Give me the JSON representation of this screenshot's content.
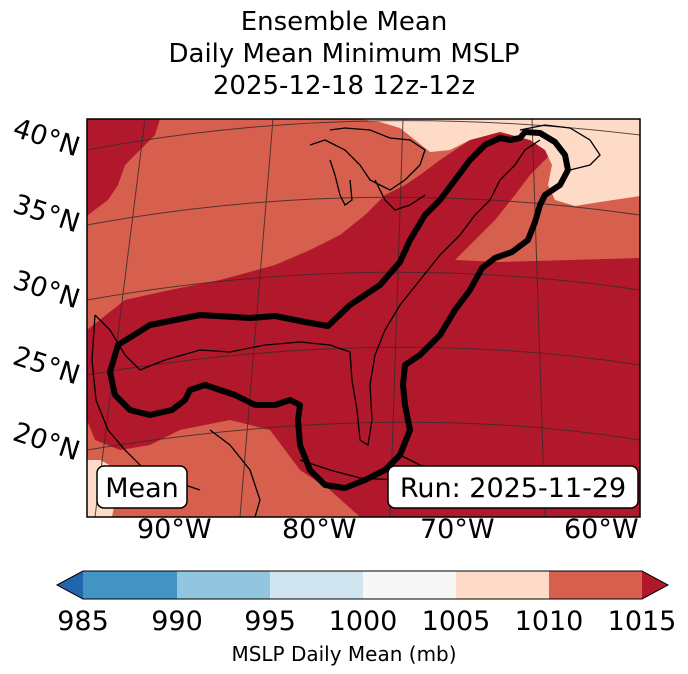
{
  "title": {
    "line1": "Ensemble Mean",
    "line2": "Daily Mean Minimum MSLP",
    "line3": "2025-12-18 12z-12z"
  },
  "map": {
    "lat_labels": [
      "40°N",
      "35°N",
      "30°N",
      "25°N",
      "20°N"
    ],
    "lon_labels": [
      "90°W",
      "80°W",
      "70°W",
      "60°W"
    ],
    "left_box": "Mean",
    "right_box": "Run: 2025-11-29",
    "colors": {
      "low_1010_1015": "#b2182b",
      "mid_1005_1010": "#d6604d",
      "high_1000_1005": "#fddbc7",
      "contour": "#000000",
      "coast": "#000000",
      "grid": "#3b2a2a"
    }
  },
  "colorbar": {
    "ticks": [
      "985",
      "990",
      "995",
      "1000",
      "1005",
      "1010",
      "1015"
    ],
    "label": "MSLP Daily Mean (mb)",
    "colors": [
      "#2166ac",
      "#4393c3",
      "#92c5de",
      "#d1e5f0",
      "#f7f7f7",
      "#fddbc7",
      "#d6604d",
      "#b2182b"
    ]
  }
}
